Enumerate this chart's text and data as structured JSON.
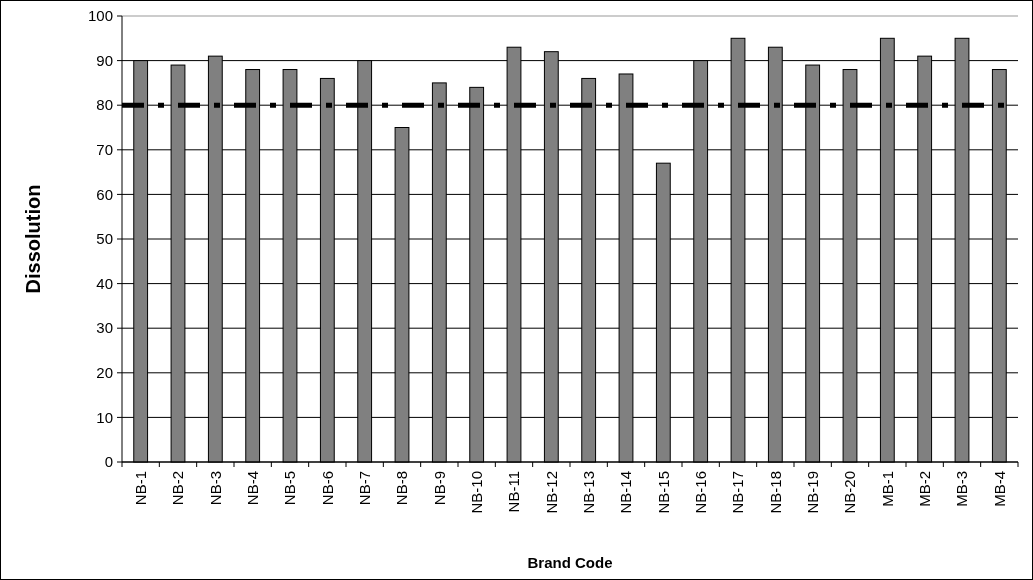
{
  "chart_data": {
    "type": "bar",
    "xlabel": "Brand Code",
    "ylabel": "Dissolution",
    "categories": [
      "NB-1",
      "NB-2",
      "NB-3",
      "NB-4",
      "NB-5",
      "NB-6",
      "NB-7",
      "NB-8",
      "NB-9",
      "NB-10",
      "NB-11",
      "NB-12",
      "NB-13",
      "NB-14",
      "NB-15",
      "NB-16",
      "NB-17",
      "NB-18",
      "NB-19",
      "NB-20",
      "MB-1",
      "MB-2",
      "MB-3",
      "MB-4"
    ],
    "values": [
      90,
      89,
      91,
      88,
      88,
      86,
      90,
      75,
      85,
      84,
      93,
      92,
      86,
      87,
      67,
      90,
      95,
      93,
      89,
      88,
      95,
      91,
      95,
      88
    ],
    "color": "#808080",
    "ylim": [
      0,
      100
    ],
    "yticks": [
      0,
      10,
      20,
      30,
      40,
      50,
      60,
      70,
      80,
      90,
      100
    ],
    "grid": "y",
    "ref_lines": [
      {
        "axis": "y",
        "value": 80,
        "color": "#000000",
        "line_style": "dashdot"
      }
    ]
  }
}
